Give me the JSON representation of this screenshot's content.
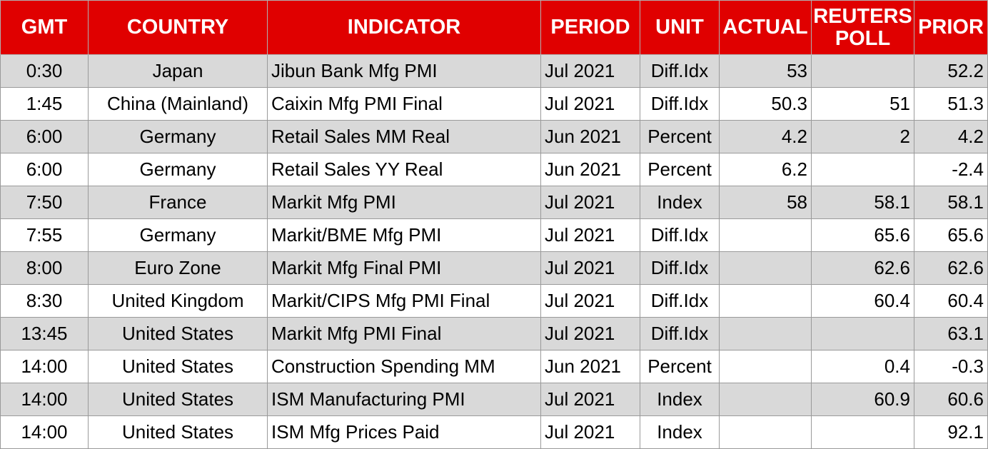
{
  "headers": {
    "gmt": "GMT",
    "country": "COUNTRY",
    "indicator": "INDICATOR",
    "period": "PERIOD",
    "unit": "UNIT",
    "actual": "ACTUAL",
    "reuters_poll": "REUTERS POLL",
    "prior": "PRIOR"
  },
  "colors": {
    "header_bg": "#e00000",
    "header_text": "#ffffff",
    "shaded_row": "#d9d9d9",
    "plain_row": "#ffffff"
  },
  "rows": [
    {
      "gmt": "0:30",
      "country": "Japan",
      "indicator": "Jibun Bank Mfg PMI",
      "period": "Jul 2021",
      "unit": "Diff.Idx",
      "actual": "53",
      "reuters_poll": "",
      "prior": "52.2"
    },
    {
      "gmt": "1:45",
      "country": "China (Mainland)",
      "indicator": "Caixin Mfg PMI Final",
      "period": "Jul 2021",
      "unit": "Diff.Idx",
      "actual": "50.3",
      "reuters_poll": "51",
      "prior": "51.3"
    },
    {
      "gmt": "6:00",
      "country": "Germany",
      "indicator": "Retail Sales MM Real",
      "period": "Jun 2021",
      "unit": "Percent",
      "actual": "4.2",
      "reuters_poll": "2",
      "prior": "4.2"
    },
    {
      "gmt": "6:00",
      "country": "Germany",
      "indicator": "Retail Sales YY Real",
      "period": "Jun 2021",
      "unit": "Percent",
      "actual": "6.2",
      "reuters_poll": "",
      "prior": "-2.4"
    },
    {
      "gmt": "7:50",
      "country": "France",
      "indicator": "Markit Mfg PMI",
      "period": "Jul 2021",
      "unit": "Index",
      "actual": "58",
      "reuters_poll": "58.1",
      "prior": "58.1"
    },
    {
      "gmt": "7:55",
      "country": "Germany",
      "indicator": "Markit/BME Mfg PMI",
      "period": "Jul 2021",
      "unit": "Diff.Idx",
      "actual": "",
      "reuters_poll": "65.6",
      "prior": "65.6"
    },
    {
      "gmt": "8:00",
      "country": "Euro Zone",
      "indicator": "Markit Mfg Final PMI",
      "period": "Jul 2021",
      "unit": "Diff.Idx",
      "actual": "",
      "reuters_poll": "62.6",
      "prior": "62.6"
    },
    {
      "gmt": "8:30",
      "country": "United Kingdom",
      "indicator": "Markit/CIPS Mfg PMI Final",
      "period": "Jul 2021",
      "unit": "Diff.Idx",
      "actual": "",
      "reuters_poll": "60.4",
      "prior": "60.4"
    },
    {
      "gmt": "13:45",
      "country": "United States",
      "indicator": "Markit Mfg PMI Final",
      "period": "Jul 2021",
      "unit": "Diff.Idx",
      "actual": "",
      "reuters_poll": "",
      "prior": "63.1"
    },
    {
      "gmt": "14:00",
      "country": "United States",
      "indicator": "Construction Spending MM",
      "period": "Jun 2021",
      "unit": "Percent",
      "actual": "",
      "reuters_poll": "0.4",
      "prior": "-0.3"
    },
    {
      "gmt": "14:00",
      "country": "United States",
      "indicator": "ISM Manufacturing PMI",
      "period": "Jul 2021",
      "unit": "Index",
      "actual": "",
      "reuters_poll": "60.9",
      "prior": "60.6"
    },
    {
      "gmt": "14:00",
      "country": "United States",
      "indicator": "ISM Mfg Prices Paid",
      "period": "Jul 2021",
      "unit": "Index",
      "actual": "",
      "reuters_poll": "",
      "prior": "92.1"
    }
  ]
}
